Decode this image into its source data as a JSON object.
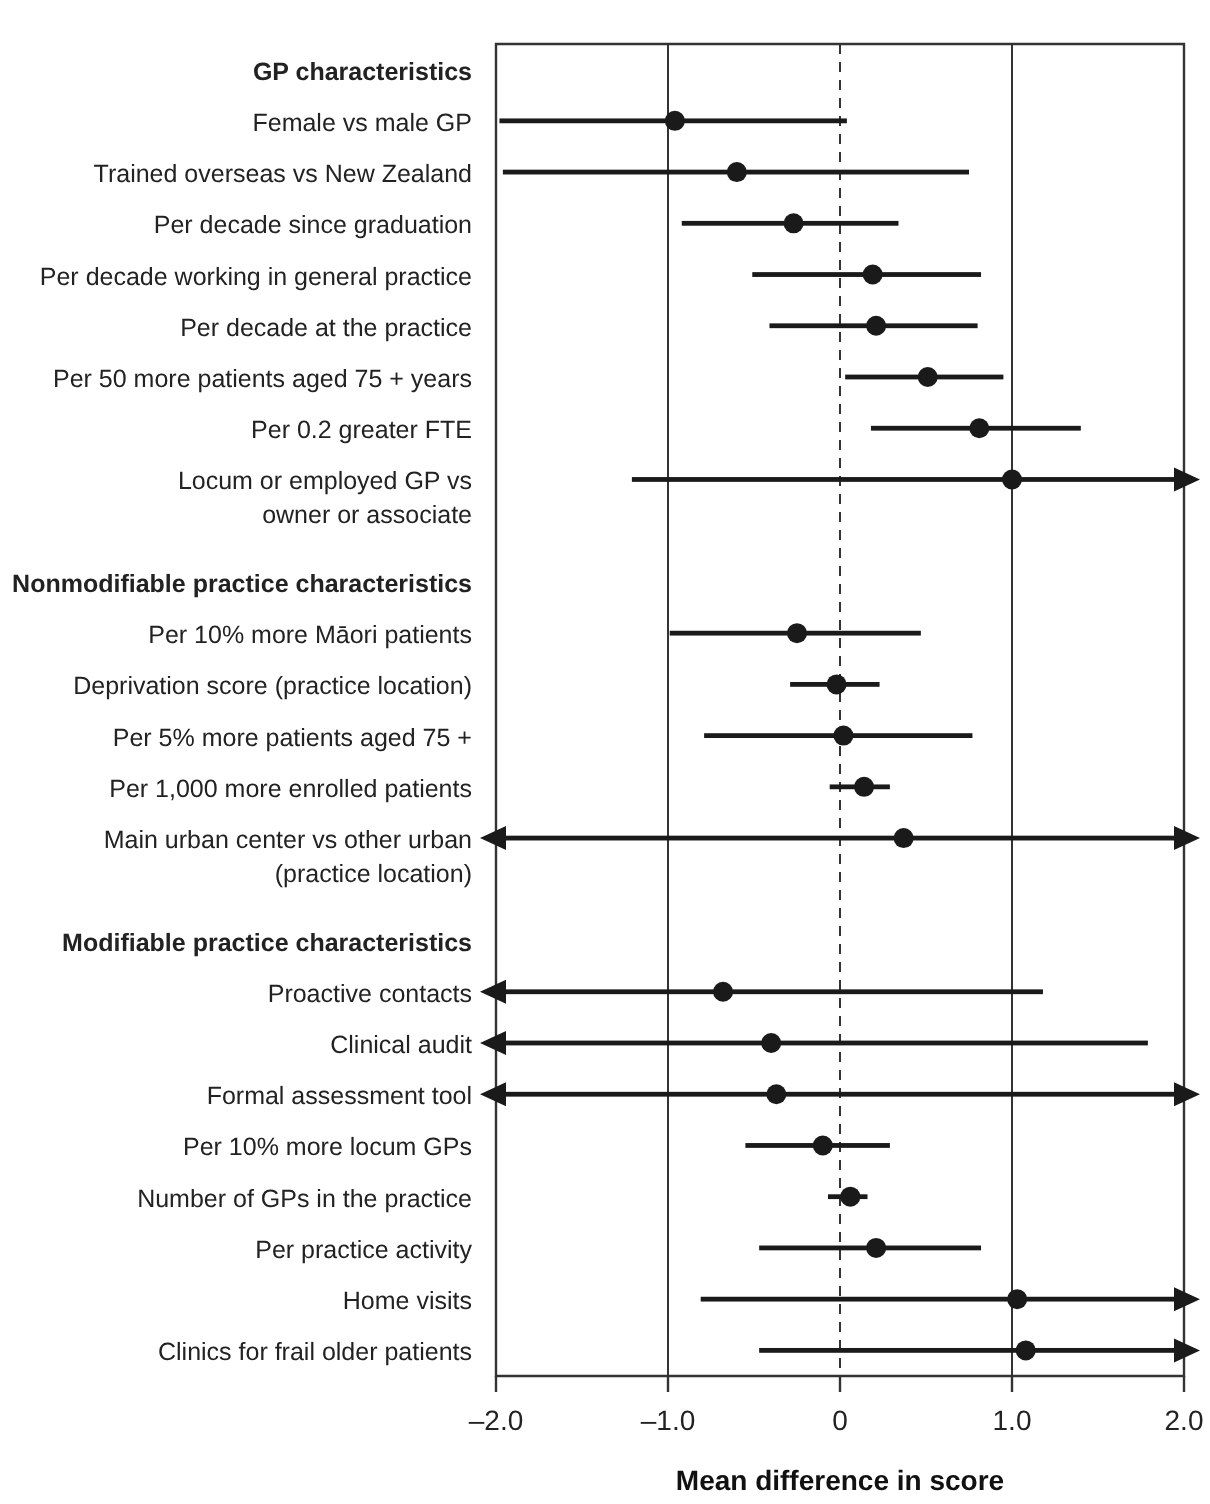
{
  "chart_data": {
    "type": "scatter",
    "orientation": "horizontal",
    "xlabel": "Mean difference in score",
    "categories": [
      "GP characteristics",
      "Female vs male GP",
      "Trained overseas vs New Zealand",
      "Per decade since graduation",
      "Per decade working in general practice",
      "Per decade at the practice",
      "Per 50 more patients aged 75 + years",
      "Per 0.2 greater FTE",
      "Locum or employed GP vs\nowner or associate",
      null,
      "Nonmodifiable practice characteristics",
      "Per 10% more Māori patients",
      "Deprivation score (practice location)",
      "Per 5% more patients aged 75 +",
      "Per 1,000 more enrolled patients",
      "Main urban center vs other urban\n(practice location)",
      null,
      "Modifiable practice characteristics",
      "Proactive contacts",
      "Clinical audit",
      "Formal assessment tool",
      "Per 10% more locum GPs",
      "Number of GPs in the practice",
      "Per practice activity",
      "Home visits",
      "Clinics for frail older patients"
    ],
    "values": [
      null,
      -0.96,
      -0.6,
      -0.27,
      0.19,
      0.21,
      0.51,
      0.81,
      1.0,
      null,
      null,
      -0.25,
      -0.02,
      0.02,
      0.14,
      0.37,
      null,
      null,
      -0.68,
      -0.4,
      -0.37,
      -0.1,
      0.06,
      0.21,
      1.03,
      1.08
    ],
    "errors": [
      null,
      [
        -1.98,
        0.04
      ],
      [
        -1.96,
        0.75
      ],
      [
        -0.92,
        0.34
      ],
      [
        -0.51,
        0.82
      ],
      [
        -0.41,
        0.8
      ],
      [
        0.03,
        0.95
      ],
      [
        0.18,
        1.4
      ],
      [
        -1.21,
        2.0
      ],
      null,
      null,
      [
        -0.99,
        0.47
      ],
      [
        -0.29,
        0.23
      ],
      [
        -0.79,
        0.77
      ],
      [
        -0.06,
        0.29
      ],
      [
        -2.0,
        2.0
      ],
      null,
      null,
      [
        -2.0,
        1.18
      ],
      [
        -2.0,
        1.79
      ],
      [
        -2.0,
        2.0
      ],
      [
        -0.55,
        0.29
      ],
      [
        -0.07,
        0.16
      ],
      [
        -0.47,
        0.82
      ],
      [
        -0.81,
        2.0
      ],
      [
        -0.47,
        2.0
      ]
    ],
    "color": "#1a1a1a",
    "marker": "circle",
    "xlim": [
      -2.0,
      2.0
    ],
    "xticks": [
      {
        "value": -2,
        "label": "–2.0"
      },
      {
        "value": -1,
        "label": "–1.0"
      },
      0,
      {
        "value": 1,
        "label": "1.0"
      },
      {
        "value": 2,
        "label": "2.0"
      }
    ],
    "grid": "x",
    "ref_lines": [
      {
        "axis": "x",
        "value": 0,
        "line_style": "dashed"
      }
    ]
  }
}
